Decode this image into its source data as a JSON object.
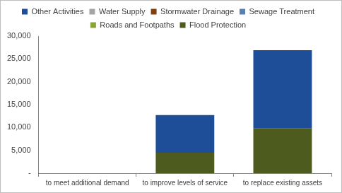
{
  "chart_data": {
    "type": "bar",
    "stacked": true,
    "grid": false,
    "legend": "top",
    "categories": [
      "to meet additional demand",
      "to improve levels of service",
      "to replace existing assets"
    ],
    "series": [
      {
        "name": "Other Activities",
        "color": "#1f4e99",
        "values": [
          0,
          8200,
          17100
        ]
      },
      {
        "name": "Water Supply",
        "color": "#a5a5a5",
        "values": [
          0,
          0,
          0
        ]
      },
      {
        "name": "Stormwater Drainage",
        "color": "#7f3f10",
        "values": [
          0,
          0,
          0
        ]
      },
      {
        "name": "Sewage Treatment",
        "color": "#5b80b2",
        "values": [
          0,
          0,
          0
        ]
      },
      {
        "name": "Roads and Footpaths",
        "color": "#8aa33a",
        "values": [
          0,
          0,
          0
        ]
      },
      {
        "name": "Flood Protection",
        "color": "#4e5b1f",
        "values": [
          0,
          4500,
          9800
        ]
      }
    ],
    "ylim": [
      0,
      30000
    ],
    "yticks": [
      {
        "value": 0,
        "label": "-"
      },
      {
        "value": 5000,
        "label": "5,000"
      },
      {
        "value": 10000,
        "label": "10,000"
      },
      {
        "value": 15000,
        "label": "15,000"
      },
      {
        "value": 20000,
        "label": "20,000"
      },
      {
        "value": 25000,
        "label": "25,000"
      },
      {
        "value": 30000,
        "label": "30,000"
      }
    ]
  }
}
